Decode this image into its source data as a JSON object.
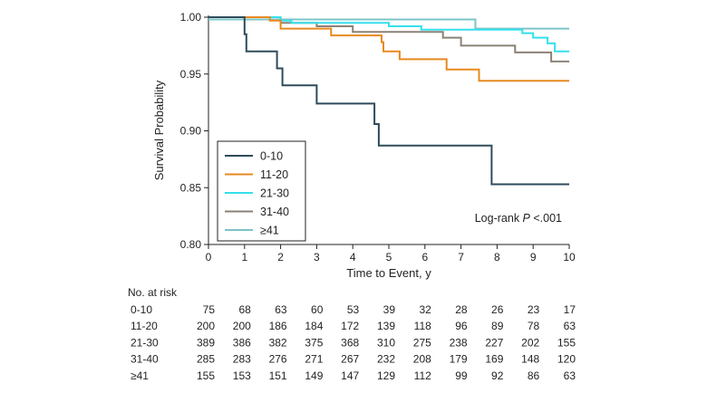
{
  "chart_data": {
    "type": "line",
    "subtype": "kaplan-meier",
    "title": "",
    "xlabel": "Time to Event, y",
    "ylabel": "Survival Probability",
    "xlim": [
      0,
      10
    ],
    "ylim": [
      0.8,
      1.0
    ],
    "x_ticks": [
      0,
      1,
      2,
      3,
      4,
      5,
      6,
      7,
      8,
      9,
      10
    ],
    "x_tick_labels": [
      "0",
      "1",
      "2",
      "3",
      "4",
      "5",
      "6",
      "7",
      "8",
      "9",
      "10"
    ],
    "y_ticks": [
      0.8,
      0.85,
      0.9,
      0.95,
      1.0
    ],
    "y_tick_labels": [
      "0.80",
      "0.85",
      "0.90",
      "0.95",
      "1.00"
    ],
    "legend_position": "lower-left",
    "annotation": {
      "text_before": "Log-rank ",
      "italic": "P",
      "text_after": " <.001"
    },
    "series": [
      {
        "name": "0-10",
        "color": "#2e4b5b",
        "steps": [
          [
            0,
            1.0
          ],
          [
            1.0,
            0.985
          ],
          [
            1.05,
            0.97
          ],
          [
            1.9,
            0.955
          ],
          [
            2.05,
            0.94
          ],
          [
            3.0,
            0.924
          ],
          [
            4.6,
            0.906
          ],
          [
            4.72,
            0.887
          ],
          [
            7.85,
            0.853
          ],
          [
            10,
            0.853
          ]
        ]
      },
      {
        "name": "11-20",
        "color": "#e8891f",
        "steps": [
          [
            0,
            1.0
          ],
          [
            1.7,
            0.997
          ],
          [
            2.0,
            0.99
          ],
          [
            3.4,
            0.984
          ],
          [
            4.8,
            0.978
          ],
          [
            4.85,
            0.97
          ],
          [
            5.3,
            0.963
          ],
          [
            6.6,
            0.954
          ],
          [
            7.5,
            0.944
          ],
          [
            10,
            0.944
          ]
        ]
      },
      {
        "name": "21-30",
        "color": "#34e0ec",
        "steps": [
          [
            0,
            1.0
          ],
          [
            2.0,
            0.997
          ],
          [
            2.3,
            0.995
          ],
          [
            5.0,
            0.992
          ],
          [
            5.9,
            0.989
          ],
          [
            8.7,
            0.986
          ],
          [
            9.0,
            0.982
          ],
          [
            9.4,
            0.977
          ],
          [
            9.6,
            0.97
          ],
          [
            10,
            0.97
          ]
        ]
      },
      {
        "name": "31-40",
        "color": "#8c8177",
        "steps": [
          [
            0,
            1.0
          ],
          [
            2.0,
            0.995
          ],
          [
            3.0,
            0.992
          ],
          [
            4.0,
            0.987
          ],
          [
            6.5,
            0.982
          ],
          [
            7.0,
            0.975
          ],
          [
            8.5,
            0.969
          ],
          [
            9.5,
            0.961
          ],
          [
            10,
            0.961
          ]
        ]
      },
      {
        "name": "≥41",
        "color": "#7cc4c8",
        "steps": [
          [
            0,
            0.998
          ],
          [
            7.4,
            0.99
          ],
          [
            10,
            0.99
          ]
        ]
      }
    ],
    "risk_table": {
      "header": "No. at risk",
      "times": [
        0,
        1,
        2,
        3,
        4,
        5,
        6,
        7,
        8,
        9,
        10
      ],
      "rows": [
        {
          "label": "0-10",
          "values": [
            "75",
            "68",
            "63",
            "60",
            "53",
            "39",
            "32",
            "28",
            "26",
            "23",
            "17"
          ]
        },
        {
          "label": "11-20",
          "values": [
            "200",
            "200",
            "186",
            "184",
            "172",
            "139",
            "118",
            "96",
            "89",
            "78",
            "63"
          ]
        },
        {
          "label": "21-30",
          "values": [
            "389",
            "386",
            "382",
            "375",
            "368",
            "310",
            "275",
            "238",
            "227",
            "202",
            "155"
          ]
        },
        {
          "label": "31-40",
          "values": [
            "285",
            "283",
            "276",
            "271",
            "267",
            "232",
            "208",
            "179",
            "169",
            "148",
            "120"
          ]
        },
        {
          "label": "≥41",
          "values": [
            "155",
            "153",
            "151",
            "149",
            "147",
            "129",
            "112",
            "99",
            "92",
            "86",
            "63"
          ]
        }
      ]
    }
  }
}
